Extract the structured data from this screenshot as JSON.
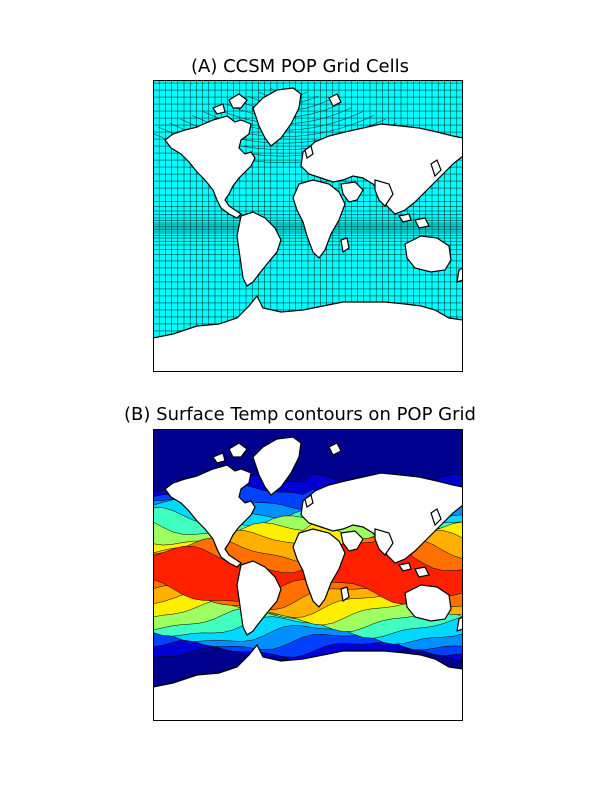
{
  "panels": [
    {
      "label": "(A) CCSM POP Grid Cells",
      "kind": "grid-cells",
      "ocean_color": "#00ffff",
      "grid_line_color": "#000000",
      "land_color": "#ffffff"
    },
    {
      "label": "(B) Surface Temp contours on POP Grid",
      "kind": "filled-contours",
      "land_color": "#ffffff",
      "colormap": [
        "#00008f",
        "#0000d5",
        "#0040ff",
        "#0090ff",
        "#00d8ff",
        "#40ffbf",
        "#a0ff60",
        "#ffee00",
        "#ffb000",
        "#ff7000",
        "#ff2000"
      ]
    }
  ]
}
